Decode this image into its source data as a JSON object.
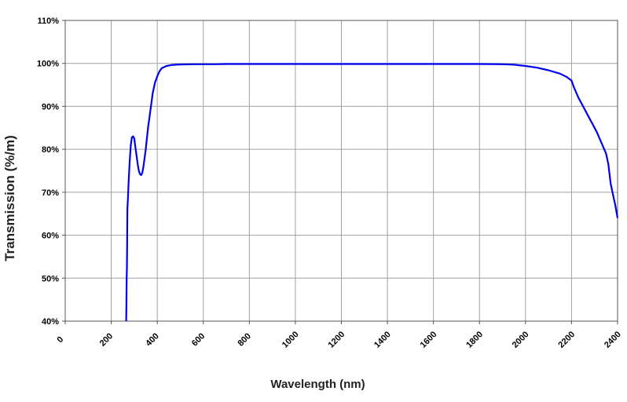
{
  "chart_data": {
    "type": "line",
    "title": "",
    "xlabel": "Wavelength (nm)",
    "ylabel": "Transmission (%/m)",
    "xlim": [
      0,
      2400
    ],
    "ylim": [
      40,
      110
    ],
    "x_ticks": [
      0,
      200,
      400,
      600,
      800,
      1000,
      1200,
      1400,
      1600,
      1800,
      2000,
      2200,
      2400
    ],
    "y_ticks": [
      40,
      50,
      60,
      70,
      80,
      90,
      100,
      110
    ],
    "y_tick_labels": [
      "40%",
      "50%",
      "60%",
      "70%",
      "80%",
      "90%",
      "100%",
      "110%"
    ],
    "grid": true,
    "legend": "none",
    "series": [
      {
        "color": "#0000ee",
        "x": [
          265,
          266,
          267,
          268,
          269,
          270,
          272,
          275,
          280,
          285,
          290,
          295,
          300,
          305,
          310,
          315,
          320,
          325,
          330,
          335,
          340,
          350,
          360,
          370,
          380,
          390,
          400,
          410,
          420,
          440,
          460,
          480,
          500,
          550,
          600,
          650,
          700,
          800,
          1000,
          1200,
          1400,
          1600,
          1800,
          1900,
          1950,
          2000,
          2050,
          2100,
          2150,
          2180,
          2200,
          2210,
          2230,
          2250,
          2270,
          2290,
          2310,
          2330,
          2350,
          2360,
          2370,
          2380,
          2390,
          2400
        ],
        "y": [
          40,
          44,
          50,
          52,
          57,
          66,
          68,
          72,
          77,
          81,
          82.8,
          83,
          82.5,
          80.5,
          78.5,
          76.5,
          75,
          74.2,
          74,
          74.5,
          76,
          80,
          85,
          89,
          93,
          95.5,
          97,
          98.2,
          98.9,
          99.4,
          99.6,
          99.7,
          99.75,
          99.8,
          99.8,
          99.8,
          99.85,
          99.85,
          99.85,
          99.85,
          99.85,
          99.85,
          99.85,
          99.8,
          99.7,
          99.4,
          99,
          98.4,
          97.6,
          96.8,
          96,
          94.5,
          92,
          90,
          88,
          86,
          84,
          81.5,
          79,
          76.5,
          72,
          69.5,
          67,
          64
        ]
      }
    ]
  }
}
